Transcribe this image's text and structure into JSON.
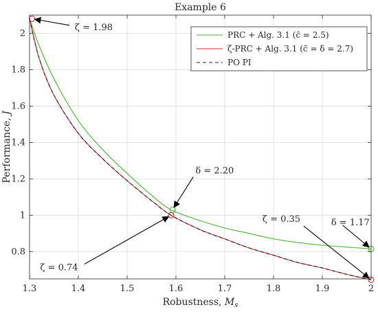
{
  "chart_data": {
    "type": "line",
    "title": "Example 6",
    "xlabel": "Robustness, M_s",
    "ylabel": "Performance, J",
    "xlim": [
      1.3,
      2.0
    ],
    "ylim": [
      0.65,
      2.1
    ],
    "xticks": [
      "1.3",
      "1.4",
      "1.5",
      "1.6",
      "1.7",
      "1.8",
      "1.9",
      "2"
    ],
    "yticks": [
      "0.8",
      "1",
      "1.2",
      "1.4",
      "1.6",
      "1.8",
      "2"
    ],
    "grid": true,
    "legend_position": "top-right",
    "series": [
      {
        "name": "PRC + Alg. 3.1 (c̄ = 2.5)",
        "color": "#4daf2e",
        "dash": "solid",
        "x": [
          1.3,
          1.32,
          1.35,
          1.4,
          1.45,
          1.5,
          1.55,
          1.59,
          1.65,
          1.7,
          1.75,
          1.8,
          1.85,
          1.9,
          1.95,
          2.0
        ],
        "y": [
          2.08,
          1.93,
          1.75,
          1.52,
          1.36,
          1.23,
          1.11,
          1.03,
          0.97,
          0.93,
          0.9,
          0.87,
          0.85,
          0.835,
          0.825,
          0.815
        ]
      },
      {
        "name": "ζ-PRC + Alg. 3.1 (c̄ = δ = 2.7)",
        "color": "#d62728",
        "dash": "solid",
        "x": [
          1.3,
          1.32,
          1.35,
          1.4,
          1.45,
          1.5,
          1.55,
          1.59,
          1.65,
          1.7,
          1.75,
          1.8,
          1.85,
          1.9,
          1.95,
          2.0
        ],
        "y": [
          2.08,
          1.86,
          1.66,
          1.45,
          1.31,
          1.19,
          1.08,
          1.0,
          0.92,
          0.87,
          0.82,
          0.78,
          0.74,
          0.71,
          0.675,
          0.645
        ]
      },
      {
        "name": "PO PI",
        "color": "#262626",
        "dash": "dashed",
        "x": [
          1.3,
          1.32,
          1.35,
          1.4,
          1.45,
          1.5,
          1.55,
          1.59,
          1.65,
          1.7,
          1.75,
          1.8,
          1.85,
          1.9,
          1.95,
          2.0
        ],
        "y": [
          2.08,
          1.86,
          1.66,
          1.45,
          1.31,
          1.19,
          1.08,
          1.0,
          0.92,
          0.87,
          0.82,
          0.78,
          0.74,
          0.71,
          0.675,
          0.645
        ]
      }
    ],
    "markers": [
      {
        "x": 1.305,
        "y": 2.08,
        "color": "#d62728"
      },
      {
        "x": 1.59,
        "y": 1.0,
        "color": "#d62728"
      },
      {
        "x": 2.0,
        "y": 0.645,
        "color": "#d62728"
      },
      {
        "x": 1.593,
        "y": 1.03,
        "color": "#4daf2e"
      },
      {
        "x": 2.0,
        "y": 0.815,
        "color": "#4daf2e"
      }
    ],
    "annotations": [
      {
        "text": "ζ = 1.98",
        "tx": 1.39,
        "ty": 2.04,
        "px": 1.305,
        "py": 2.08
      },
      {
        "text": "δ = 2.20",
        "tx": 1.64,
        "ty": 1.23,
        "px": 1.593,
        "py": 1.03
      },
      {
        "text": "ζ = 0.74",
        "tx": 1.405,
        "ty": 0.72,
        "px": 1.59,
        "py": 1.0
      },
      {
        "text": "δ = 1.17",
        "tx": 1.935,
        "ty": 0.96,
        "px": 2.0,
        "py": 0.815
      },
      {
        "text": "ζ = 0.35",
        "tx": 1.855,
        "ty": 0.955,
        "px": 2.0,
        "py": 0.645
      }
    ]
  }
}
